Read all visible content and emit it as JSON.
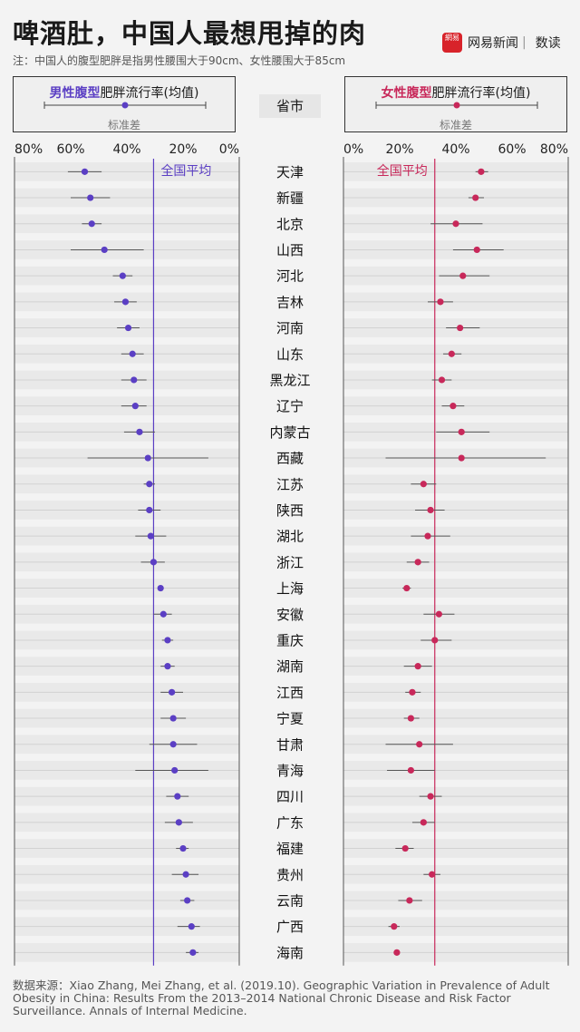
{
  "title": "啤酒肚，中国人最想甩掉的肉",
  "note": "注：中国人的腹型肥胖是指男性腰围大于90cm、女性腰围大于85cm",
  "logo": {
    "badge": "網易",
    "brand": "网易新闻",
    "sep": "|",
    "sub": "数读"
  },
  "legend": {
    "male": {
      "bold": "男性腹型",
      "rest": "肥胖流行率(均值)",
      "sd": "标准差",
      "color": "#5b3fc4"
    },
    "female": {
      "bold": "女性腹型",
      "rest": "肥胖流行率(均值)",
      "sd": "标准差",
      "color": "#c8285a"
    }
  },
  "province_header": "省市",
  "source": "数据来源：Xiao Zhang, Mei Zhang, et al. (2019.10). Geographic Variation in Prevalence of Adult Obesity in China: Results From the 2013–2014 National Chronic Disease and Risk Factor Surveillance. Annals of Internal Medicine.",
  "chart_data": {
    "type": "scatter",
    "categories": [
      "天津",
      "新疆",
      "北京",
      "山西",
      "河北",
      "吉林",
      "河南",
      "山东",
      "黑龙江",
      "辽宁",
      "内蒙古",
      "西藏",
      "江苏",
      "陕西",
      "湖北",
      "浙江",
      "上海",
      "安徽",
      "重庆",
      "湖南",
      "江西",
      "宁夏",
      "甘肃",
      "青海",
      "四川",
      "广东",
      "福建",
      "贵州",
      "云南",
      "广西",
      "海南"
    ],
    "male_ticks": [
      "80%",
      "60%",
      "40%",
      "20%",
      "0%"
    ],
    "female_ticks": [
      "0%",
      "20%",
      "40%",
      "60%",
      "80%"
    ],
    "xlim": [
      0,
      80
    ],
    "series": [
      {
        "name": "男性腹型肥胖流行率(均值)",
        "color": "#5b3fc4",
        "average_label": "全国平均",
        "average": 30.5,
        "values": [
          55,
          53,
          52.5,
          48,
          41.5,
          40.5,
          39.5,
          38,
          37.5,
          37,
          35.5,
          32.5,
          32,
          32,
          31.5,
          30.5,
          28,
          27,
          25.5,
          25.5,
          24,
          23.5,
          23.5,
          23,
          22,
          21.5,
          20,
          19,
          18.5,
          17,
          16.5
        ],
        "sd_low": [
          49,
          46,
          49,
          34,
          38,
          36.5,
          35.5,
          34,
          33,
          33,
          30,
          11,
          30,
          28,
          26,
          26.5,
          27,
          24,
          23.5,
          23,
          20,
          19,
          15,
          11,
          18,
          16.5,
          18,
          14.5,
          16,
          14,
          14.5
        ],
        "sd_high": [
          61,
          60,
          56,
          60,
          45,
          44.5,
          43.5,
          42,
          42,
          42,
          41,
          54,
          34,
          36,
          37,
          35,
          29,
          30.5,
          27.5,
          28,
          28,
          28,
          32,
          37,
          26,
          26.5,
          22.5,
          24,
          21,
          22,
          19
        ]
      },
      {
        "name": "女性腹型肥胖流行率(均值)",
        "color": "#c8285a",
        "average_label": "全国平均",
        "average": 32.5,
        "values": [
          49,
          47,
          40,
          47.5,
          42.5,
          34.5,
          41.5,
          38.5,
          35,
          39,
          42,
          42,
          28.5,
          31,
          30,
          26.5,
          22.5,
          34,
          32.5,
          26.5,
          24.5,
          24,
          27,
          24,
          31,
          28.5,
          22,
          31.5,
          23.5,
          18,
          19
        ],
        "sd_low": [
          47,
          44.5,
          31,
          39,
          34,
          30,
          36.5,
          35.5,
          31.5,
          35,
          33,
          15,
          24,
          25.5,
          24,
          22.5,
          21,
          28.5,
          27.5,
          21.5,
          22,
          21.5,
          15,
          15.5,
          27,
          24.5,
          18.5,
          28.5,
          19.5,
          16,
          18
        ],
        "sd_high": [
          51.5,
          50,
          49.5,
          57,
          52,
          39,
          48.5,
          42,
          38.5,
          43,
          52,
          72,
          33,
          36,
          38,
          30.5,
          24,
          39.5,
          38.5,
          31.5,
          27.5,
          27,
          39,
          32.5,
          35,
          32.5,
          25,
          34.5,
          28,
          20,
          20
        ]
      }
    ]
  }
}
